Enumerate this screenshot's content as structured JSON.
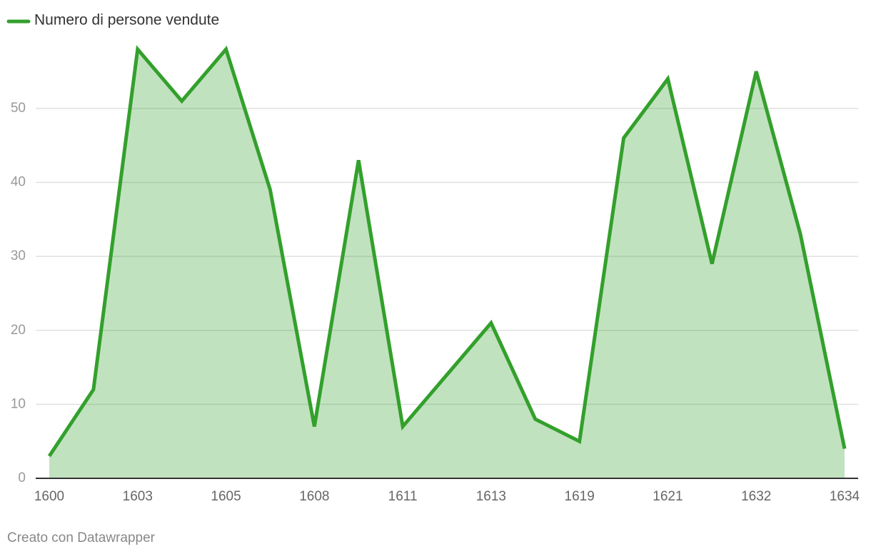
{
  "chart_data": {
    "type": "area",
    "legend": "top-left",
    "categories": [
      "1600",
      null,
      "1603",
      null,
      "1605",
      null,
      "1608",
      null,
      "1611",
      null,
      "1613",
      null,
      "1619",
      null,
      "1621",
      null,
      "1632",
      null,
      "1634"
    ],
    "series": [
      {
        "name": "Numero di persone vendute",
        "color": "#33a02c",
        "values": [
          3,
          12,
          58,
          51,
          58,
          39,
          7,
          43,
          7,
          14,
          21,
          8,
          5,
          46,
          54,
          29,
          55,
          33,
          4
        ]
      }
    ],
    "ylim": [
      0,
      58
    ],
    "yticks": [
      0,
      10,
      20,
      30,
      40,
      50
    ],
    "grid": true,
    "footer": "Creato con Datawrapper"
  }
}
